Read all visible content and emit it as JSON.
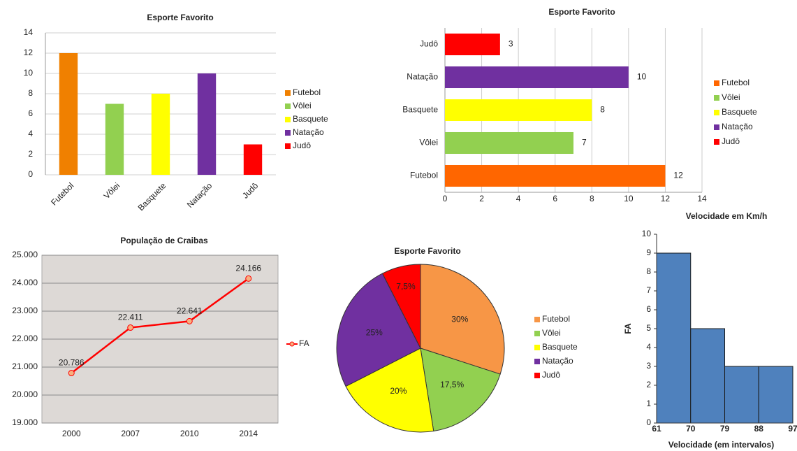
{
  "chart_data": [
    {
      "type": "bar",
      "orientation": "vertical",
      "title": "Esporte Favorito",
      "categories": [
        "Futebol",
        "Vôlei",
        "Basquete",
        "Natação",
        "Judô"
      ],
      "values": [
        12,
        7,
        8,
        10,
        3
      ],
      "colors": [
        "#f08000",
        "#92d050",
        "#ffff00",
        "#7030a0",
        "#ff0000"
      ],
      "ylim": [
        0,
        14
      ],
      "yticks": [
        0,
        2,
        4,
        6,
        8,
        10,
        12,
        14
      ],
      "grid": true,
      "legend": "right"
    },
    {
      "type": "bar",
      "orientation": "horizontal",
      "title": "Esporte Favorito",
      "categories": [
        "Futebol",
        "Vôlei",
        "Basquete",
        "Natação",
        "Judô"
      ],
      "values": [
        12,
        7,
        8,
        10,
        3
      ],
      "colors": [
        "#ff6600",
        "#92d050",
        "#ffff00",
        "#7030a0",
        "#ff0000"
      ],
      "xlim": [
        0,
        14
      ],
      "xticks": [
        0,
        2,
        4,
        6,
        8,
        10,
        12,
        14
      ],
      "grid": true,
      "legend": "right"
    },
    {
      "type": "line",
      "title": "População de Craibas",
      "categories": [
        "2000",
        "2007",
        "2010",
        "2014"
      ],
      "series": [
        {
          "name": "FA",
          "color": "#ff0000",
          "values": [
            20786,
            22411,
            22641,
            24166
          ],
          "value_labels": [
            "20.786",
            "22.411",
            "22.641",
            "24.166"
          ]
        }
      ],
      "ylim": [
        19000,
        25000
      ],
      "yticks": [
        {
          "value": 19000,
          "label": "19.000"
        },
        {
          "value": 20000,
          "label": "20.000"
        },
        {
          "value": 21000,
          "label": "21.000"
        },
        {
          "value": 22000,
          "label": "22.000"
        },
        {
          "value": 23000,
          "label": "23.000"
        },
        {
          "value": 24000,
          "label": "24.000"
        },
        {
          "value": 25000,
          "label": "25.000"
        }
      ],
      "grid": true,
      "legend": "right"
    },
    {
      "type": "pie",
      "title": "Esporte Favorito",
      "categories": [
        "Futebol",
        "Vôlei",
        "Basquete",
        "Natação",
        "Judô"
      ],
      "values": [
        30,
        17.5,
        20,
        25,
        7.5
      ],
      "value_labels": [
        "30%",
        "17,5%",
        "20%",
        "25%",
        "7,5%"
      ],
      "colors": [
        "#f79646",
        "#92d050",
        "#ffff00",
        "#7030a0",
        "#ff0000"
      ],
      "legend": "right"
    },
    {
      "type": "histogram",
      "title": "Velocidade em Km/h",
      "xlabel": "Velocidade (em intervalos)",
      "ylabel": "FA",
      "bins": [
        61,
        70,
        79,
        88,
        97
      ],
      "values": [
        9,
        5,
        3,
        3
      ],
      "color": "#4f81bd",
      "xlim": [
        61,
        97
      ],
      "ylim": [
        0,
        10
      ],
      "yticks": [
        0,
        1,
        2,
        3,
        4,
        5,
        6,
        7,
        8,
        9,
        10
      ],
      "grid": false
    }
  ]
}
